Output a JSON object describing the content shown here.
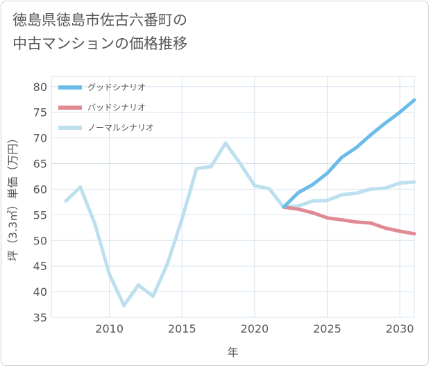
{
  "title": {
    "line1": "徳島県徳島市佐古六番町の",
    "line2": "中古マンションの価格推移"
  },
  "chart_data": {
    "type": "line",
    "title": "徳島県徳島市佐古六番町の中古マンションの価格推移",
    "xlabel": "年",
    "ylabel": "坪（3.3㎡）単価（万円）",
    "xlim": [
      2006,
      2031
    ],
    "ylim": [
      35,
      82
    ],
    "xticks": [
      2010,
      2015,
      2020,
      2025,
      2030
    ],
    "yticks": [
      35,
      40,
      45,
      50,
      55,
      60,
      65,
      70,
      75,
      80
    ],
    "grid": true,
    "legend_position": "top-left",
    "series": [
      {
        "name": "グッドシナリオ",
        "color": "#6cbce9",
        "x": [
          2022,
          2023,
          2024,
          2025,
          2026,
          2027,
          2028,
          2029,
          2030,
          2031
        ],
        "values": [
          56.5,
          59.3,
          60.9,
          63.1,
          66.2,
          68.1,
          70.6,
          72.9,
          75.0,
          77.4
        ]
      },
      {
        "name": "バッドシナリオ",
        "color": "#e08a93",
        "x": [
          2022,
          2023,
          2024,
          2025,
          2026,
          2027,
          2028,
          2029,
          2030,
          2031
        ],
        "values": [
          56.5,
          56.1,
          55.4,
          54.4,
          54.0,
          53.6,
          53.4,
          52.4,
          51.8,
          51.3
        ]
      },
      {
        "name": "ノーマルシナリオ",
        "color": "#bde0ee",
        "x": [
          2007,
          2008,
          2009,
          2010,
          2011,
          2012,
          2013,
          2014,
          2015,
          2016,
          2017,
          2018,
          2019,
          2020,
          2021,
          2022,
          2023,
          2024,
          2025,
          2026,
          2027,
          2028,
          2029,
          2030,
          2031
        ],
        "values": [
          57.7,
          60.4,
          53.2,
          43.4,
          37.3,
          41.3,
          39.1,
          45.5,
          54.2,
          64.0,
          64.4,
          69.0,
          65.0,
          60.7,
          60.1,
          56.5,
          56.7,
          57.7,
          57.8,
          58.9,
          59.2,
          60.0,
          60.2,
          61.2,
          61.4
        ]
      }
    ]
  }
}
